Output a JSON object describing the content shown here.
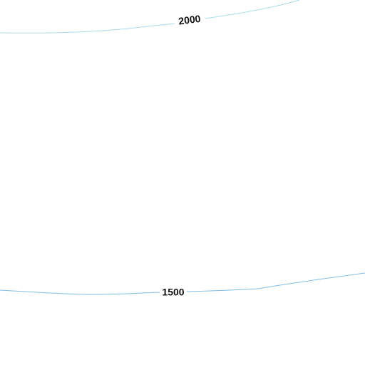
{
  "contours": [
    {
      "label": "2000"
    },
    {
      "label": "1500"
    }
  ]
}
